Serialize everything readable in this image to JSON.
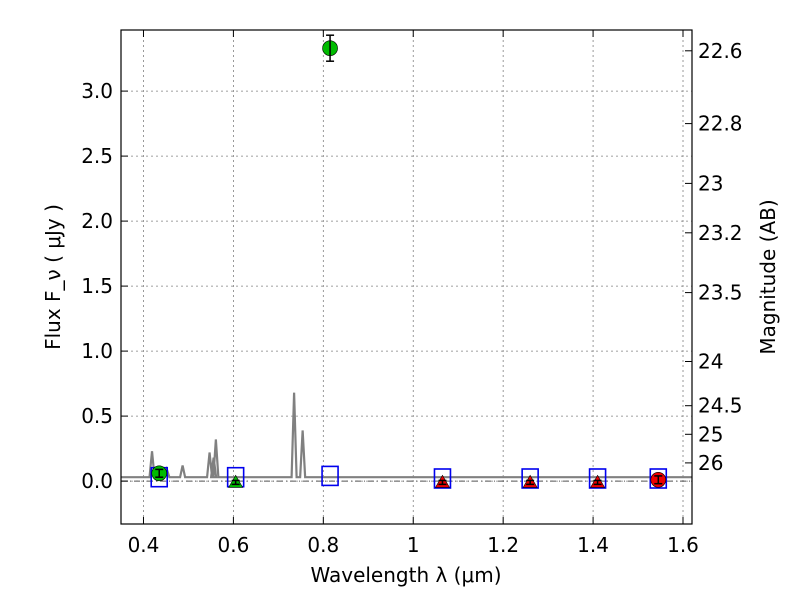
{
  "chart_data": {
    "type": "scatter",
    "xlabel": "Wavelength λ (μm)",
    "ylabel": "Flux F_ν ( μJy )",
    "ylabel_right": "Magnitude (AB)",
    "xlim": [
      0.35,
      1.62
    ],
    "ylim": [
      -0.33,
      3.47
    ],
    "x_ticks": [
      0.4,
      0.6,
      0.8,
      1.0,
      1.2,
      1.4,
      1.6
    ],
    "x_tick_labels": [
      "0.4",
      "0.6",
      "0.8",
      "1",
      "1.2",
      "1.4",
      "1.6"
    ],
    "y_ticks": [
      0.0,
      0.5,
      1.0,
      1.5,
      2.0,
      2.5,
      3.0
    ],
    "y_tick_labels": [
      "0.0",
      "0.5",
      "1.0",
      "1.5",
      "2.0",
      "2.5",
      "3.0"
    ],
    "right_ticks": [
      {
        "flux": 3.31,
        "label": "22.6"
      },
      {
        "flux": 2.75,
        "label": "22.8"
      },
      {
        "flux": 2.29,
        "label": "23"
      },
      {
        "flux": 1.91,
        "label": "23.2"
      },
      {
        "flux": 1.45,
        "label": "23.5"
      },
      {
        "flux": 0.92,
        "label": "24"
      },
      {
        "flux": 0.58,
        "label": "24.5"
      },
      {
        "flux": 0.36,
        "label": "25"
      },
      {
        "flux": 0.14,
        "label": "26"
      }
    ],
    "grid": true,
    "detections": [
      {
        "x": 0.435,
        "y": 0.06,
        "err": 0.03,
        "color": "#00bb00"
      },
      {
        "x": 0.815,
        "y": 3.33,
        "err": 0.1,
        "color": "#00bb00"
      },
      {
        "x": 1.545,
        "y": 0.01,
        "err": 0.03,
        "color": "#ee0000"
      }
    ],
    "upper_limits": [
      {
        "x": 0.605,
        "y": -0.01,
        "err": 0.015,
        "color": "#00bb00"
      },
      {
        "x": 1.065,
        "y": -0.01,
        "err": 0.015,
        "color": "#ee0000"
      },
      {
        "x": 1.26,
        "y": -0.01,
        "err": 0.015,
        "color": "#ee0000"
      },
      {
        "x": 1.41,
        "y": -0.01,
        "err": 0.015,
        "color": "#ee0000"
      }
    ],
    "model_photometry": [
      {
        "x": 0.435,
        "y": 0.03
      },
      {
        "x": 0.605,
        "y": 0.03
      },
      {
        "x": 0.815,
        "y": 0.04
      },
      {
        "x": 1.065,
        "y": 0.02
      },
      {
        "x": 1.26,
        "y": 0.02
      },
      {
        "x": 1.41,
        "y": 0.02
      },
      {
        "x": 1.545,
        "y": 0.02
      }
    ],
    "template_spectrum": {
      "baseline": 0.03,
      "color": "#808080",
      "lines": [
        {
          "x": 0.419,
          "peak": 0.23
        },
        {
          "x": 0.452,
          "peak": 0.09
        },
        {
          "x": 0.487,
          "peak": 0.12
        },
        {
          "x": 0.547,
          "peak": 0.22
        },
        {
          "x": 0.556,
          "peak": 0.18
        },
        {
          "x": 0.561,
          "peak": 0.32
        },
        {
          "x": 0.735,
          "peak": 0.68
        },
        {
          "x": 0.754,
          "peak": 0.39
        }
      ]
    },
    "zero_line": 0.0
  },
  "colors": {
    "model_box": "#0000ee",
    "axis": "#000000",
    "grid": "#808080"
  }
}
